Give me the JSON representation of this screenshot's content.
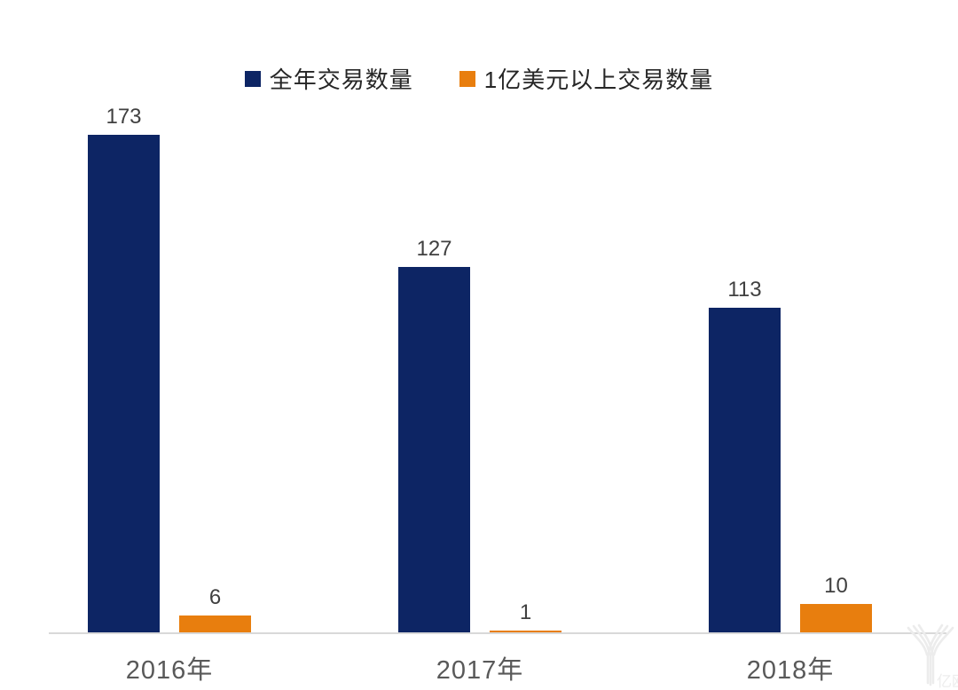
{
  "chart_data": {
    "type": "bar",
    "categories": [
      "2016年",
      "2017年",
      "2018年"
    ],
    "series": [
      {
        "name": "全年交易数量",
        "color": "#0d2564",
        "values": [
          173,
          127,
          113
        ]
      },
      {
        "name": "1亿美元以上交易数量",
        "color": "#e87e0e",
        "values": [
          6,
          1,
          10
        ]
      }
    ],
    "title": "",
    "xlabel": "",
    "ylabel": "",
    "ylim": [
      0,
      180
    ],
    "grid": false,
    "legend_position": "top",
    "data_labels": true,
    "data_label_color": "#404040",
    "axis_label_color": "#595959",
    "axis_line_color": "#d9d9d9"
  },
  "watermark": {
    "text": "亿欧"
  }
}
